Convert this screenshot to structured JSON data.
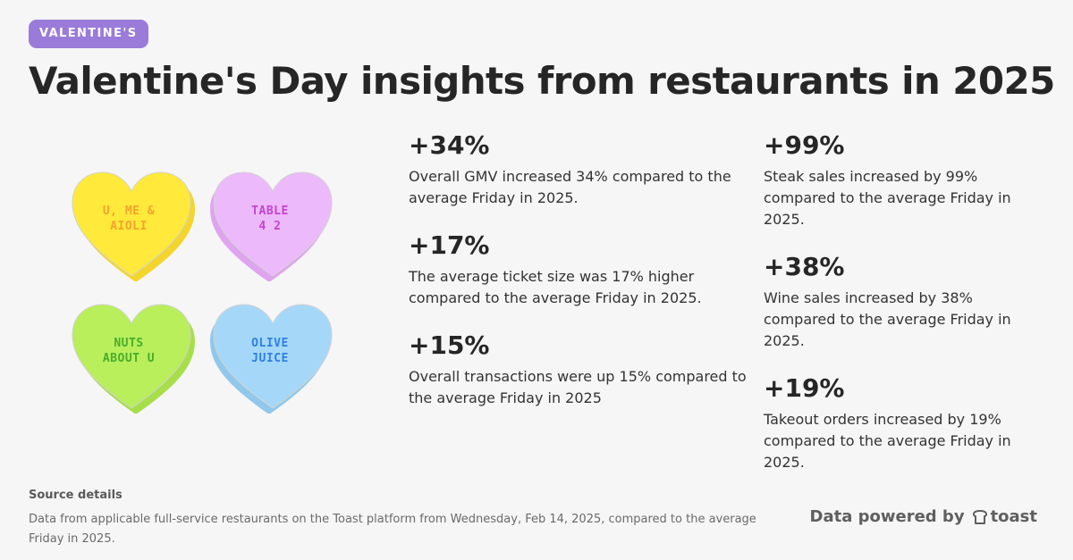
{
  "badge": {
    "label": "VALENTINE'S"
  },
  "title": "Valentine's Day insights from restaurants in 2025",
  "hearts": [
    {
      "text": "U, ME &\nAIOLI",
      "fill": "#ffe93a",
      "shade": "#f4d52a",
      "text_color": "#f5a32d"
    },
    {
      "text": "TABLE\n4 2",
      "fill": "#ecb9fb",
      "shade": "#dfa3ef",
      "text_color": "#c542cf"
    },
    {
      "text": "NUTS\nABOUT U",
      "fill": "#b8ef5a",
      "shade": "#a6df48",
      "text_color": "#48ad2c"
    },
    {
      "text": "OLIVE\nJUICE",
      "fill": "#a5d8f8",
      "shade": "#8fc8ec",
      "text_color": "#2f7fe5"
    }
  ],
  "stats": [
    {
      "value": "+34%",
      "desc": "Overall GMV increased 34% compared to the average Friday in 2025."
    },
    {
      "value": "+17%",
      "desc": "The average ticket size was 17% higher compared to the average Friday in 2025."
    },
    {
      "value": "+15%",
      "desc": "Overall transactions were up 15% compared to the average Friday in 2025"
    },
    {
      "value": "+99%",
      "desc": "Steak sales increased by 99% compared to the average Friday in 2025."
    },
    {
      "value": "+38%",
      "desc": "Wine sales increased by 38% compared to the average Friday in 2025."
    },
    {
      "value": "+19%",
      "desc": "Takeout orders increased by 19% compared to the average Friday in 2025."
    }
  ],
  "source": {
    "heading": "Source details",
    "text": "Data from applicable full-service restaurants on the Toast platform from Wednesday, Feb 14, 2025, compared to the average Friday in 2025."
  },
  "footer": {
    "powered_by": "Data powered by",
    "brand": "toast",
    "logo_icon": "toast-logo-icon"
  },
  "colors": {
    "background": "#f6f6f6",
    "badge": "#9a7bd9",
    "title": "#262626"
  }
}
